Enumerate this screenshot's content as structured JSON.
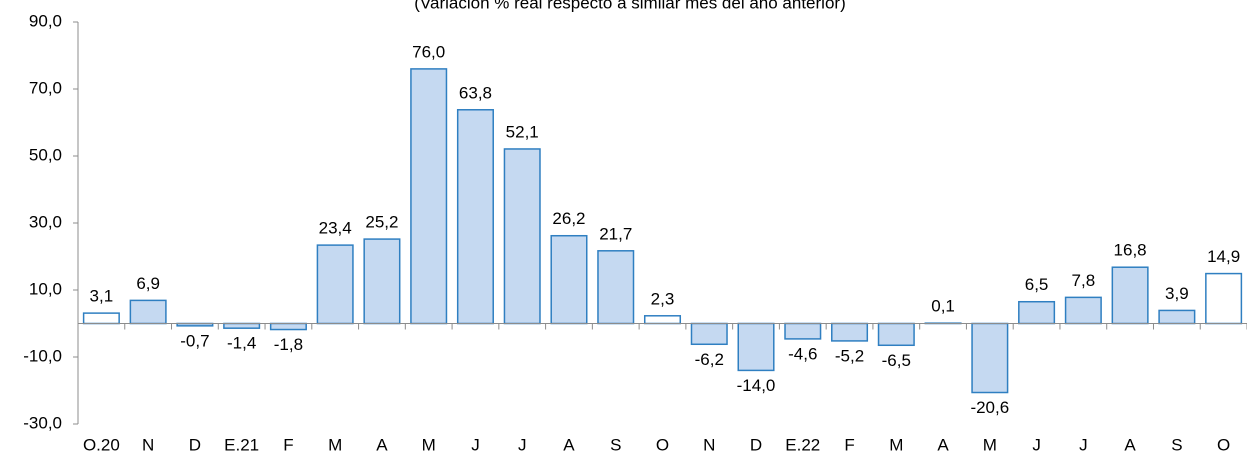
{
  "chart_data": {
    "type": "bar",
    "subtitle": "(Variación % real respecto a similar mes del año anterior)",
    "categories": [
      "O.20",
      "N",
      "D",
      "E.21",
      "F",
      "M",
      "A",
      "M",
      "J",
      "J",
      "A",
      "S",
      "O",
      "N",
      "D",
      "E.22",
      "F",
      "M",
      "A",
      "M",
      "J",
      "J",
      "A",
      "S",
      "O"
    ],
    "values": [
      3.1,
      6.9,
      -0.7,
      -1.4,
      -1.8,
      23.4,
      25.2,
      76.0,
      63.8,
      52.1,
      26.2,
      21.7,
      2.3,
      -6.2,
      -14.0,
      -4.6,
      -5.2,
      -6.5,
      0.1,
      -20.6,
      6.5,
      7.8,
      16.8,
      3.9,
      14.9
    ],
    "value_labels": [
      "3,1",
      "6,9",
      "-0,7",
      "-1,4",
      "-1,8",
      "23,4",
      "25,2",
      "76,0",
      "63,8",
      "52,1",
      "26,2",
      "21,7",
      "2,3",
      "-6,2",
      "-14,0",
      "-4,6",
      "-5,2",
      "-6,5",
      "0,1",
      "-20,6",
      "6,5",
      "7,8",
      "16,8",
      "3,9",
      "14,9"
    ],
    "colors": [
      "#ffffff",
      "#c5d9f1",
      "#c5d9f1",
      "#c5d9f1",
      "#c5d9f1",
      "#c5d9f1",
      "#c5d9f1",
      "#c5d9f1",
      "#c5d9f1",
      "#c5d9f1",
      "#c5d9f1",
      "#c5d9f1",
      "#ffffff",
      "#c5d9f1",
      "#c5d9f1",
      "#c5d9f1",
      "#c5d9f1",
      "#c5d9f1",
      "#c5d9f1",
      "#c5d9f1",
      "#c5d9f1",
      "#c5d9f1",
      "#c5d9f1",
      "#c5d9f1",
      "#ffffff"
    ],
    "edge_color": "#2f7fc1",
    "ylim": [
      -30,
      90
    ],
    "yticks": [
      {
        "value": -30,
        "label": "-30,0"
      },
      {
        "value": -10,
        "label": "-10,0"
      },
      {
        "value": 10,
        "label": "10,0"
      },
      {
        "value": 30,
        "label": "30,0"
      },
      {
        "value": 50,
        "label": "50,0"
      },
      {
        "value": 70,
        "label": "70,0"
      },
      {
        "value": 90,
        "label": "90,0"
      }
    ],
    "grid": false
  }
}
